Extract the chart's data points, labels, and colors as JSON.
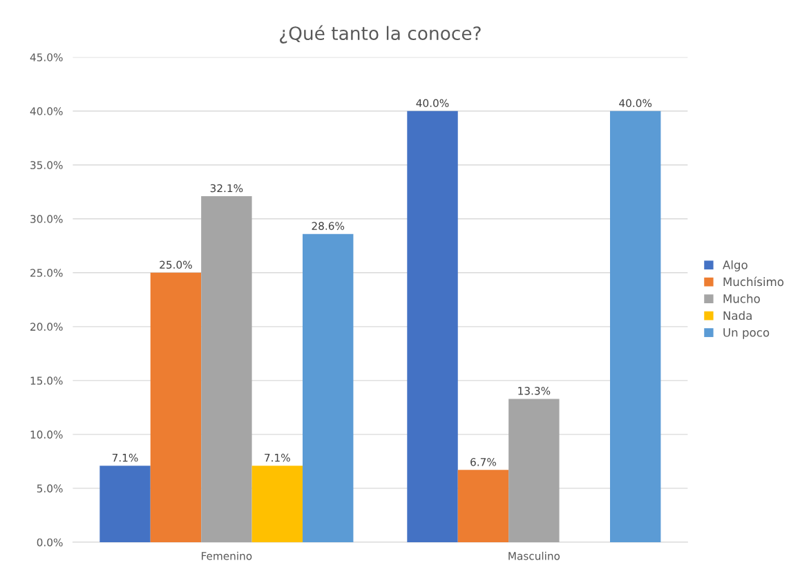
{
  "chart_data": {
    "type": "bar",
    "title": "¿Qué tanto la conoce?",
    "categories": [
      "Femenino",
      "Masculino"
    ],
    "series": [
      {
        "name": "Algo",
        "color": "#4472c4",
        "values": [
          7.1,
          40.0
        ],
        "value_labels": [
          "7.1%",
          "40.0%"
        ]
      },
      {
        "name": "Muchísimo",
        "color": "#ed7d31",
        "values": [
          25.0,
          6.7
        ],
        "value_labels": [
          "25.0%",
          "6.7%"
        ]
      },
      {
        "name": "Mucho",
        "color": "#a5a5a5",
        "values": [
          32.1,
          13.3
        ],
        "value_labels": [
          "32.1%",
          "13.3%"
        ]
      },
      {
        "name": "Nada",
        "color": "#ffc000",
        "values": [
          7.1,
          null
        ],
        "value_labels": [
          "7.1%",
          null
        ]
      },
      {
        "name": "Un poco",
        "color": "#5b9bd5",
        "values": [
          28.6,
          40.0
        ],
        "value_labels": [
          "28.6%",
          "40.0%"
        ]
      }
    ],
    "ylim": [
      0,
      45
    ],
    "yticks": [
      {
        "value": 0,
        "label": "0.0%"
      },
      {
        "value": 5,
        "label": "5.0%"
      },
      {
        "value": 10,
        "label": "10.0%"
      },
      {
        "value": 15,
        "label": "15.0%"
      },
      {
        "value": 20,
        "label": "20.0%"
      },
      {
        "value": 25,
        "label": "25.0%"
      },
      {
        "value": 30,
        "label": "30.0%"
      },
      {
        "value": 35,
        "label": "35.0%"
      },
      {
        "value": 40,
        "label": "40.0%"
      },
      {
        "value": 45,
        "label": "45.0%"
      }
    ],
    "grid": "y",
    "legend": "right"
  }
}
